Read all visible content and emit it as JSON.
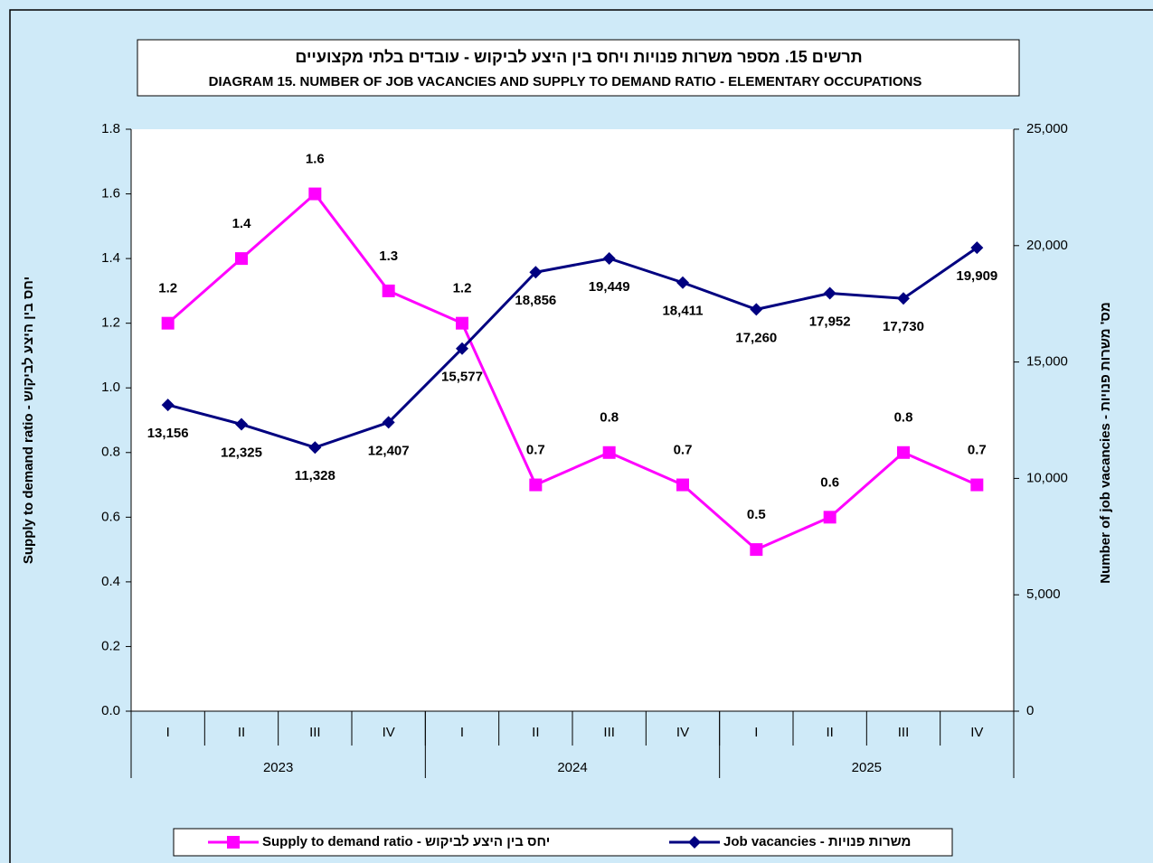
{
  "chart_data": {
    "type": "line",
    "title": "תרשים 15. מספר משרות פנויות ויחס בין היצע לביקוש - עובדים בלתי מקצועיים",
    "subtitle": "DIAGRAM 15. NUMBER OF JOB VACANCIES  AND SUPPLY TO DEMAND RATIO - ELEMENTARY OCCUPATIONS",
    "categories": [
      "I",
      "II",
      "III",
      "IV",
      "I",
      "II",
      "III",
      "IV",
      "I",
      "II",
      "III",
      "IV"
    ],
    "category_groups": [
      "2023",
      "2024",
      "2025"
    ],
    "ylabel": "Supply to demand ratio - יחס בין היצע לביקוש",
    "y2label": "Number of job vacancies - מס' משרות פנויות",
    "ylim": [
      0,
      1.8
    ],
    "yticks": [
      {
        "value": 0,
        "label": "0.0"
      },
      0.2,
      0.4,
      0.6,
      0.8,
      {
        "value": 1,
        "label": "1.0"
      },
      1.2,
      1.4,
      1.6,
      1.8
    ],
    "y2lim": [
      0,
      25000
    ],
    "y2ticks": [
      0,
      {
        "value": 5000,
        "label": "5,000"
      },
      {
        "value": 10000,
        "label": "10,000"
      },
      {
        "value": 15000,
        "label": "15,000"
      },
      {
        "value": 20000,
        "label": "20,000"
      },
      {
        "value": 25000,
        "label": "25,000"
      }
    ],
    "grid": false,
    "legend": "bottom",
    "series": [
      {
        "name": "Supply to demand ratio - יחס בין היצע לביקוש",
        "color": "#ff00ff",
        "marker": "square",
        "values": [
          1.2,
          1.4,
          1.6,
          1.3,
          1.2,
          0.7,
          0.8,
          0.7,
          0.5,
          0.6,
          0.8,
          0.7
        ]
      },
      {
        "name": "Job vacancies - משרות פנויות",
        "color": "#000080",
        "marker": "diamond",
        "axis": "y2",
        "values": [
          13156,
          12325,
          11328,
          12407,
          15577,
          18856,
          19449,
          18411,
          17260,
          17952,
          17730,
          19909
        ],
        "value_labels": [
          "13,156",
          "12,325",
          "11,328",
          "12,407",
          "15,577",
          "18,856",
          "19,449",
          "18,411",
          "17,260",
          "17,952",
          "17,730",
          "19,909"
        ]
      }
    ]
  }
}
